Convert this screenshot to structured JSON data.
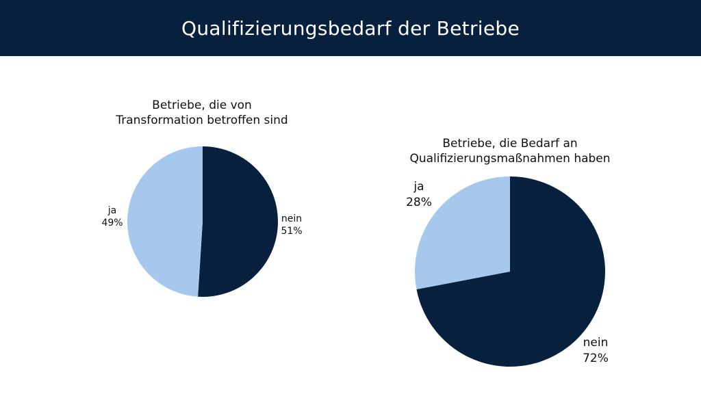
{
  "header": {
    "title": "Qualifizierungsbedarf der Betriebe"
  },
  "colors": {
    "header_bg": "#06203d",
    "nein": "#06203d",
    "ja": "#a7c8ed"
  },
  "chart_data": [
    {
      "type": "pie",
      "title_lines": [
        "Betriebe, die von",
        "Transformation betroffen sind"
      ],
      "slices": [
        {
          "label": "nein",
          "value": 51,
          "value_label": "51%",
          "color": "#06203d"
        },
        {
          "label": "ja",
          "value": 49,
          "value_label": "49%",
          "color": "#a7c8ed"
        }
      ]
    },
    {
      "type": "pie",
      "title_lines": [
        "Betriebe, die Bedarf an",
        "Qualifizierungsmaßnahmen haben"
      ],
      "slices": [
        {
          "label": "nein",
          "value": 72,
          "value_label": "72%",
          "color": "#06203d"
        },
        {
          "label": "ja",
          "value": 28,
          "value_label": "28%",
          "color": "#a7c8ed"
        }
      ]
    }
  ]
}
